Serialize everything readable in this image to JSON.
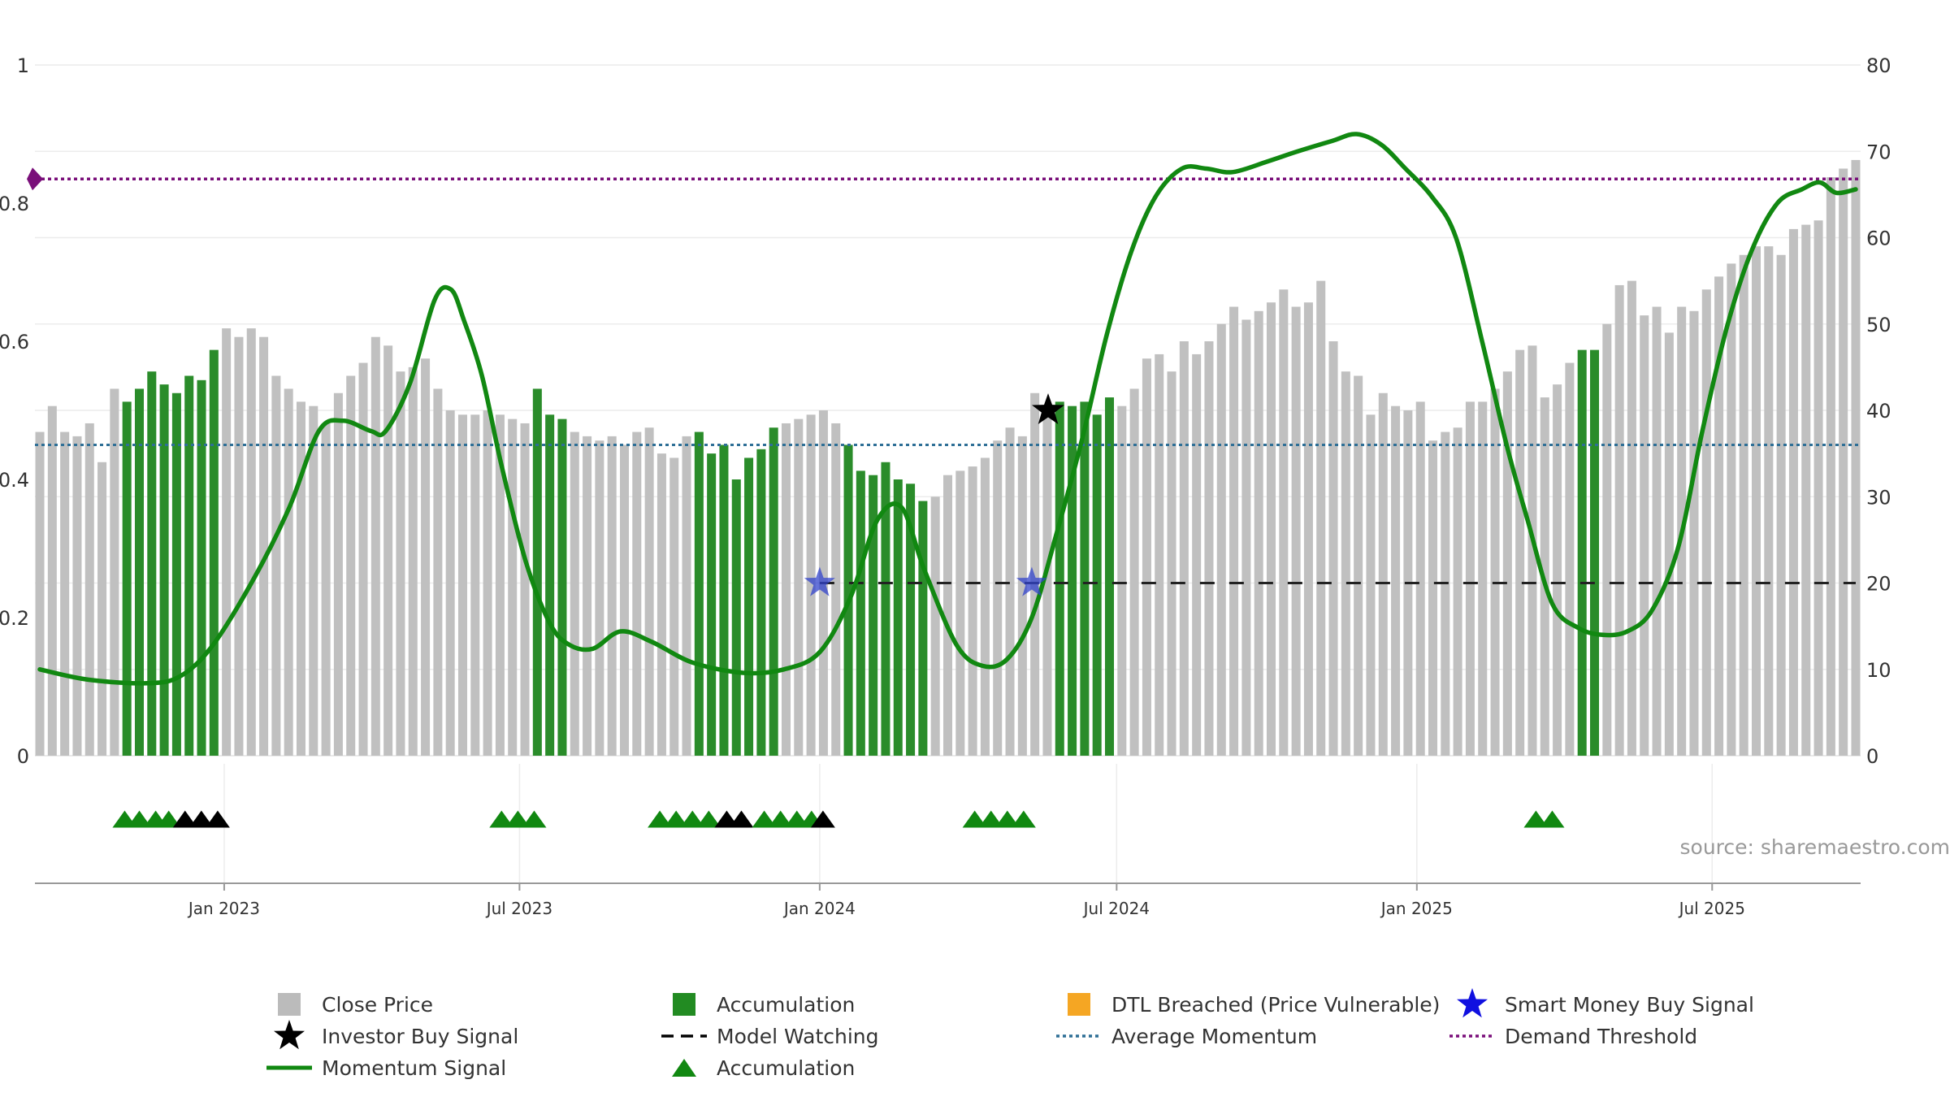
{
  "chart_data": {
    "type": "bar",
    "title": "",
    "x_tick_labels": [
      "Jan 2023",
      "Jul 2023",
      "Jan 2024",
      "Jul 2024",
      "Jan 2025",
      "Jul 2025"
    ],
    "x_tick_dates": [
      "2023-01-01",
      "2023-07-01",
      "2024-01-01",
      "2024-07-01",
      "2025-01-01",
      "2025-07-01"
    ],
    "x_range": [
      "2022-09-07",
      "2025-09-30"
    ],
    "bar_x_range": [
      "2022-09-10",
      "2025-09-27"
    ],
    "left_axis": {
      "label": "",
      "range": [
        0,
        1
      ],
      "ticks": [
        0,
        0.2,
        0.4,
        0.6,
        0.8,
        1
      ]
    },
    "right_axis": {
      "label": "",
      "range": [
        0,
        80
      ],
      "ticks": [
        0,
        10,
        20,
        30,
        40,
        50,
        60,
        70,
        80
      ]
    },
    "grid": true,
    "legend_position": "bottom",
    "close_price": [
      37.5,
      40.5,
      37.5,
      37,
      38.5,
      34,
      42.5,
      41,
      42.5,
      44.5,
      43,
      42,
      44,
      43.5,
      47,
      49.5,
      48.5,
      49.5,
      48.5,
      44,
      42.5,
      41,
      40.5,
      38.5,
      42,
      44,
      45.5,
      48.5,
      47.5,
      44.5,
      45,
      46,
      42.5,
      40,
      39.5,
      39.5,
      40,
      39.5,
      39,
      38.5,
      42.5,
      39.5,
      39,
      37.5,
      37,
      36.5,
      37,
      36,
      37.5,
      38,
      35,
      34.5,
      37,
      37.5,
      35,
      36,
      32,
      34.5,
      35.5,
      38,
      38.5,
      39,
      39.5,
      40,
      38.5,
      36,
      33,
      32.5,
      34,
      32,
      31.5,
      29.5,
      30,
      32.5,
      33,
      33.5,
      34.5,
      36.5,
      38,
      37,
      42,
      40,
      41,
      40.5,
      41,
      39.5,
      41.5,
      40.5,
      42.5,
      46,
      46.5,
      44.5,
      48,
      46.5,
      48,
      50,
      52,
      50.5,
      51.5,
      52.5,
      54,
      52,
      52.5,
      55,
      48,
      44.5,
      44,
      39.5,
      42,
      40.5,
      40,
      41,
      36.5,
      37.5,
      38,
      41,
      41,
      42.5,
      44.5,
      47,
      47.5,
      41.5,
      43,
      45.5,
      47,
      47,
      50,
      54.5,
      55,
      51,
      52,
      49,
      52,
      51.5,
      54,
      55.5,
      57,
      58,
      59,
      59,
      58,
      61,
      61.5,
      62,
      67,
      68,
      69
    ],
    "bar_state": [
      "c",
      "c",
      "c",
      "c",
      "c",
      "c",
      "c",
      "a",
      "a",
      "a",
      "a",
      "a",
      "a",
      "a",
      "a",
      "c",
      "c",
      "c",
      "c",
      "c",
      "c",
      "c",
      "c",
      "c",
      "c",
      "c",
      "c",
      "c",
      "c",
      "c",
      "c",
      "c",
      "c",
      "c",
      "c",
      "c",
      "c",
      "c",
      "c",
      "c",
      "a",
      "a",
      "a",
      "c",
      "c",
      "c",
      "c",
      "c",
      "c",
      "c",
      "c",
      "c",
      "c",
      "a",
      "a",
      "a",
      "a",
      "a",
      "a",
      "a",
      "c",
      "c",
      "c",
      "c",
      "c",
      "a",
      "a",
      "a",
      "a",
      "a",
      "a",
      "a",
      "c",
      "c",
      "c",
      "c",
      "c",
      "c",
      "c",
      "c",
      "c",
      "c",
      "a",
      "a",
      "a",
      "a",
      "a",
      "c",
      "c",
      "c",
      "c",
      "c",
      "c",
      "c",
      "c",
      "c",
      "c",
      "c",
      "c",
      "c",
      "c",
      "c",
      "c",
      "c",
      "c",
      "c",
      "c",
      "c",
      "c",
      "c",
      "c",
      "c",
      "c",
      "c",
      "c",
      "c",
      "c",
      "c",
      "c",
      "c",
      "c",
      "c",
      "c",
      "c",
      "a",
      "a",
      "c",
      "c",
      "c",
      "c",
      "c",
      "c",
      "c",
      "c",
      "c",
      "c",
      "c",
      "c",
      "c",
      "c",
      "c",
      "c",
      "c",
      "c",
      "c",
      "c",
      "c",
      "c",
      "c",
      "c",
      "c",
      "d",
      "d",
      "d",
      "d",
      "d",
      "d"
    ],
    "momentum_signal": [
      [
        "2022-09-10",
        0.125
      ],
      [
        "2022-10-10",
        0.11
      ],
      [
        "2022-11-15",
        0.105
      ],
      [
        "2022-12-05",
        0.115
      ],
      [
        "2022-12-25",
        0.16
      ],
      [
        "2023-01-20",
        0.26
      ],
      [
        "2023-02-10",
        0.36
      ],
      [
        "2023-02-28",
        0.47
      ],
      [
        "2023-03-15",
        0.485
      ],
      [
        "2023-04-01",
        0.47
      ],
      [
        "2023-04-10",
        0.47
      ],
      [
        "2023-04-25",
        0.54
      ],
      [
        "2023-05-10",
        0.66
      ],
      [
        "2023-05-20",
        0.675
      ],
      [
        "2023-05-28",
        0.63
      ],
      [
        "2023-06-08",
        0.55
      ],
      [
        "2023-06-20",
        0.42
      ],
      [
        "2023-07-05",
        0.28
      ],
      [
        "2023-07-20",
        0.19
      ],
      [
        "2023-08-01",
        0.16
      ],
      [
        "2023-08-15",
        0.155
      ],
      [
        "2023-09-01",
        0.18
      ],
      [
        "2023-09-20",
        0.165
      ],
      [
        "2023-10-15",
        0.135
      ],
      [
        "2023-11-15",
        0.12
      ],
      [
        "2023-12-10",
        0.125
      ],
      [
        "2024-01-01",
        0.15
      ],
      [
        "2024-01-20",
        0.23
      ],
      [
        "2024-02-05",
        0.34
      ],
      [
        "2024-02-20",
        0.36
      ],
      [
        "2024-03-05",
        0.27
      ],
      [
        "2024-03-25",
        0.16
      ],
      [
        "2024-04-10",
        0.13
      ],
      [
        "2024-04-25",
        0.14
      ],
      [
        "2024-05-10",
        0.2
      ],
      [
        "2024-05-25",
        0.32
      ],
      [
        "2024-06-10",
        0.46
      ],
      [
        "2024-06-25",
        0.61
      ],
      [
        "2024-07-10",
        0.73
      ],
      [
        "2024-07-25",
        0.81
      ],
      [
        "2024-08-10",
        0.85
      ],
      [
        "2024-08-25",
        0.85
      ],
      [
        "2024-09-10",
        0.845
      ],
      [
        "2024-10-01",
        0.86
      ],
      [
        "2024-10-20",
        0.875
      ],
      [
        "2024-11-10",
        0.89
      ],
      [
        "2024-11-25",
        0.9
      ],
      [
        "2024-12-10",
        0.885
      ],
      [
        "2024-12-25",
        0.85
      ],
      [
        "2025-01-10",
        0.81
      ],
      [
        "2025-01-25",
        0.75
      ],
      [
        "2025-02-10",
        0.6
      ],
      [
        "2025-02-25",
        0.45
      ],
      [
        "2025-03-10",
        0.34
      ],
      [
        "2025-03-25",
        0.22
      ],
      [
        "2025-04-10",
        0.185
      ],
      [
        "2025-04-25",
        0.175
      ],
      [
        "2025-05-10",
        0.18
      ],
      [
        "2025-05-25",
        0.21
      ],
      [
        "2025-06-10",
        0.3
      ],
      [
        "2025-06-25",
        0.47
      ],
      [
        "2025-07-10",
        0.62
      ],
      [
        "2025-07-25",
        0.73
      ],
      [
        "2025-08-10",
        0.8
      ],
      [
        "2025-08-25",
        0.82
      ],
      [
        "2025-09-05",
        0.83
      ],
      [
        "2025-09-15",
        0.815
      ],
      [
        "2025-09-27",
        0.82
      ]
    ],
    "average_momentum": 0.45,
    "demand_threshold": 0.835,
    "model_watching": {
      "value": 0.25,
      "from": "2024-01-01",
      "to": "2025-09-27"
    },
    "smart_money_buy_signals": [
      [
        "2024-01-01",
        0.25
      ],
      [
        "2024-05-10",
        0.25
      ]
    ],
    "investor_buy_signals": [
      [
        "2024-05-20",
        0.5
      ]
    ],
    "accumulation_markers": [
      [
        "2022-11-01",
        "g"
      ],
      [
        "2022-11-10",
        "g"
      ],
      [
        "2022-11-20",
        "g"
      ],
      [
        "2022-11-28",
        "g"
      ],
      [
        "2022-12-08",
        "k"
      ],
      [
        "2022-12-18",
        "k"
      ],
      [
        "2022-12-28",
        "k"
      ],
      [
        "2023-06-20",
        "g"
      ],
      [
        "2023-06-30",
        "g"
      ],
      [
        "2023-07-10",
        "g"
      ],
      [
        "2023-09-25",
        "g"
      ],
      [
        "2023-10-05",
        "g"
      ],
      [
        "2023-10-15",
        "g"
      ],
      [
        "2023-10-25",
        "g"
      ],
      [
        "2023-11-05",
        "k"
      ],
      [
        "2023-11-14",
        "k"
      ],
      [
        "2023-11-28",
        "g"
      ],
      [
        "2023-12-08",
        "g"
      ],
      [
        "2023-12-18",
        "g"
      ],
      [
        "2023-12-27",
        "g"
      ],
      [
        "2024-01-03",
        "k"
      ],
      [
        "2024-04-05",
        "g"
      ],
      [
        "2024-04-15",
        "g"
      ],
      [
        "2024-04-25",
        "g"
      ],
      [
        "2024-05-05",
        "g"
      ],
      [
        "2025-03-15",
        "g"
      ],
      [
        "2025-03-25",
        "g"
      ]
    ],
    "legend": [
      {
        "label": "Close Price",
        "symbol": "square",
        "color": "#bbbbbb"
      },
      {
        "label": "Accumulation",
        "symbol": "square",
        "color": "#228b22"
      },
      {
        "label": "DTL Breached (Price Vulnerable)",
        "symbol": "square",
        "color": "#f5a623"
      },
      {
        "label": "Smart Money Buy Signal",
        "symbol": "star",
        "color": "#1010e0"
      },
      {
        "label": "Investor Buy Signal",
        "symbol": "star",
        "color": "#000000"
      },
      {
        "label": "Model Watching",
        "symbol": "dash",
        "color": "#000000"
      },
      {
        "label": "Average Momentum",
        "symbol": "dot",
        "color": "#2e6f96"
      },
      {
        "label": "Demand Threshold",
        "symbol": "dot",
        "color": "#7a0f7a"
      },
      {
        "label": "Momentum Signal",
        "symbol": "line",
        "color": "#118811"
      },
      {
        "label": "Accumulation",
        "symbol": "triangle",
        "color": "#118811"
      }
    ],
    "annotation": "source: sharemaestro.com"
  },
  "colors": {
    "close_price": "#c0c0c0",
    "accumulation": "#2a8c2a",
    "dtl": "#ffd580",
    "momentum": "#118811",
    "average": "#2e6f96",
    "threshold": "#7a0f7a",
    "smart_money": "#3344cc",
    "investor": "#000000",
    "marker_green": "#118811",
    "marker_black": "#000000",
    "grid": "#ececec",
    "axis": "#999999"
  }
}
